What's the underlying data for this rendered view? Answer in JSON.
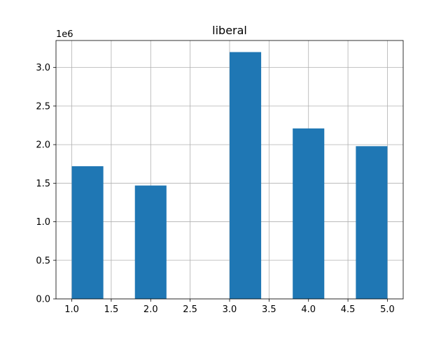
{
  "chart_data": {
    "type": "bar",
    "title": "liberal",
    "xlabel": "",
    "ylabel": "",
    "y_offset_label": "1e6",
    "xlim": [
      0.8,
      5.2
    ],
    "ylim": [
      0,
      3.35
    ],
    "x_ticks": [
      "1.0",
      "1.5",
      "2.0",
      "2.5",
      "3.0",
      "3.5",
      "4.0",
      "4.5",
      "5.0"
    ],
    "y_ticks": [
      "0.0",
      "0.5",
      "1.0",
      "1.5",
      "2.0",
      "2.5",
      "3.0"
    ],
    "grid": true,
    "bar_color": "#1f77b4",
    "bins": [
      {
        "x0": 1.0,
        "x1": 1.4,
        "value": 1.72
      },
      {
        "x0": 1.4,
        "x1": 1.8,
        "value": 0
      },
      {
        "x0": 1.8,
        "x1": 2.2,
        "value": 1.47
      },
      {
        "x0": 2.2,
        "x1": 2.6,
        "value": 0
      },
      {
        "x0": 2.6,
        "x1": 3.0,
        "value": 0
      },
      {
        "x0": 3.0,
        "x1": 3.4,
        "value": 3.2
      },
      {
        "x0": 3.4,
        "x1": 3.8,
        "value": 0
      },
      {
        "x0": 3.8,
        "x1": 4.2,
        "value": 2.21
      },
      {
        "x0": 4.2,
        "x1": 4.6,
        "value": 0
      },
      {
        "x0": 4.6,
        "x1": 5.0,
        "value": 1.98
      }
    ]
  }
}
